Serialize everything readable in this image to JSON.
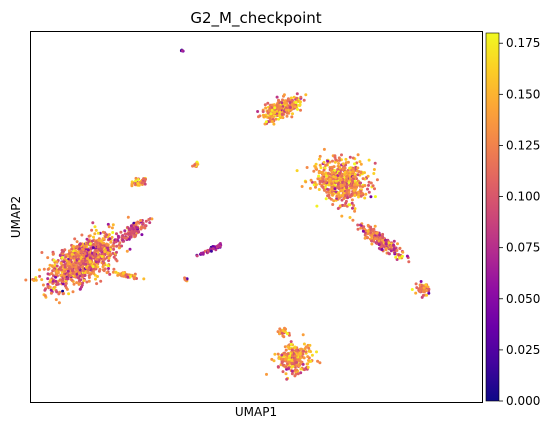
{
  "chart_data": {
    "type": "scatter",
    "title": "G2_M_checkpoint",
    "xlabel": "UMAP1",
    "ylabel": "UMAP2",
    "show_axis_ticks": false,
    "grid": false,
    "colormap": "plasma",
    "colorbar": {
      "position": "right",
      "vmin": 0.0,
      "vmax": 0.18,
      "ticks": [
        0.0,
        0.025,
        0.05,
        0.075,
        0.1,
        0.125,
        0.15,
        0.175
      ],
      "tick_labels": [
        "0.000",
        "0.025",
        "0.050",
        "0.075",
        "0.100",
        "0.125",
        "0.150",
        "0.175"
      ]
    },
    "xlim": [
      0,
      10
    ],
    "ylim": [
      0,
      8
    ],
    "clusters": [
      {
        "id": "left-large",
        "center": [
          1.15,
          3.05
        ],
        "spread": [
          0.9,
          0.42
        ],
        "angle": 0.55,
        "n": 900,
        "mean": 0.12
      },
      {
        "id": "left-arm",
        "center": [
          2.25,
          3.7
        ],
        "spread": [
          0.38,
          0.12
        ],
        "angle": 0.55,
        "n": 120,
        "mean": 0.1
      },
      {
        "id": "left-tail",
        "center": [
          2.08,
          2.75
        ],
        "spread": [
          0.3,
          0.05
        ],
        "angle": -0.2,
        "n": 50,
        "mean": 0.14
      },
      {
        "id": "left-small",
        "center": [
          2.4,
          4.75
        ],
        "spread": [
          0.18,
          0.08
        ],
        "angle": 0.3,
        "n": 40,
        "mean": 0.13
      },
      {
        "id": "top-center",
        "center": [
          5.55,
          6.35
        ],
        "spread": [
          0.5,
          0.18
        ],
        "angle": 0.45,
        "n": 260,
        "mean": 0.13
      },
      {
        "id": "right-main",
        "center": [
          6.9,
          4.75
        ],
        "spread": [
          0.6,
          0.45
        ],
        "angle": -0.35,
        "n": 600,
        "mean": 0.13
      },
      {
        "id": "right-stream",
        "center": [
          7.75,
          3.5
        ],
        "spread": [
          0.6,
          0.12
        ],
        "angle": -0.6,
        "n": 220,
        "mean": 0.11
      },
      {
        "id": "right-tip",
        "center": [
          8.7,
          2.45
        ],
        "spread": [
          0.14,
          0.12
        ],
        "angle": 0.0,
        "n": 60,
        "mean": 0.11
      },
      {
        "id": "center-streak",
        "center": [
          4.0,
          3.3
        ],
        "spread": [
          0.28,
          0.04
        ],
        "angle": 0.45,
        "n": 40,
        "mean": 0.07
      },
      {
        "id": "center-dash",
        "center": [
          3.65,
          5.12
        ],
        "spread": [
          0.12,
          0.04
        ],
        "angle": 0.6,
        "n": 15,
        "mean": 0.14
      },
      {
        "id": "center-dot",
        "center": [
          3.45,
          2.65
        ],
        "spread": [
          0.05,
          0.04
        ],
        "angle": 0.0,
        "n": 6,
        "mean": 0.12
      },
      {
        "id": "top-dot",
        "center": [
          3.35,
          7.6
        ],
        "spread": [
          0.03,
          0.03
        ],
        "angle": 0.0,
        "n": 4,
        "mean": 0.05
      },
      {
        "id": "bottom-blob",
        "center": [
          5.85,
          0.95
        ],
        "spread": [
          0.38,
          0.3
        ],
        "angle": 0.2,
        "n": 260,
        "mean": 0.13
      },
      {
        "id": "bottom-bits",
        "center": [
          5.6,
          1.5
        ],
        "spread": [
          0.12,
          0.08
        ],
        "angle": 0.0,
        "n": 20,
        "mean": 0.13
      }
    ]
  }
}
